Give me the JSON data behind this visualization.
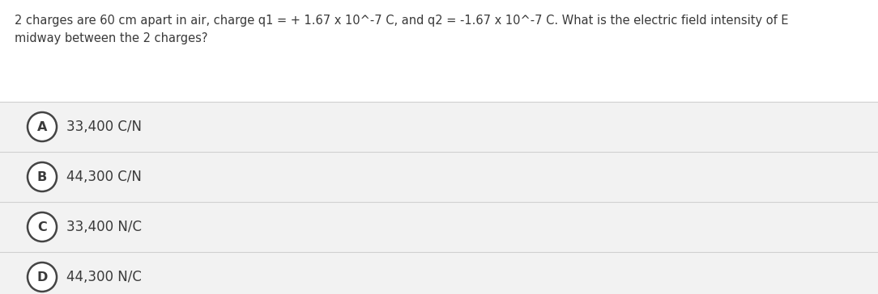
{
  "question_line1": "2 charges are 60 cm apart in air, charge q1 = + 1.67 x 10^-7 C, and q2 = -1.67 x 10^-7 C. What is the electric field intensity of E",
  "question_line2": "midway between the 2 charges?",
  "options": [
    {
      "label": "A",
      "text": "33,400 C/N"
    },
    {
      "label": "B",
      "text": "44,300 C/N"
    },
    {
      "label": "C",
      "text": "33,400 N/C"
    },
    {
      "label": "D",
      "text": "44,300 N/C"
    }
  ],
  "bg_color": "#ffffff",
  "option_bg_color": "#f2f2f2",
  "option_border_color": "#d0d0d0",
  "text_color": "#3a3a3a",
  "circle_edge_color": "#444444",
  "question_fontsize": 10.5,
  "option_fontsize": 12.0,
  "label_fontsize": 11.5,
  "fig_width": 10.84,
  "fig_height": 3.64,
  "dpi": 100
}
